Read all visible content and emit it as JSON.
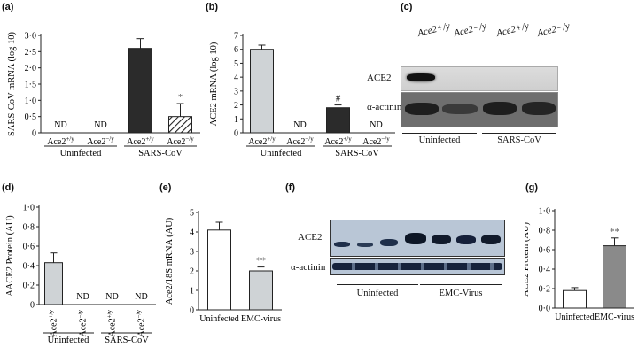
{
  "panels": {
    "a": {
      "label": "(a)",
      "ylabel": "SARS-CoV mRNA (log 10)"
    },
    "b": {
      "label": "(b)",
      "ylabel": "ACE2 mRNA (log 10)"
    },
    "c": {
      "label": "(c)"
    },
    "d": {
      "label": "(d)",
      "ylabel": "AACE2 Protein (AU)"
    },
    "e": {
      "label": "(e)",
      "ylabel": "Ace2/18S mRNA (AU)"
    },
    "f": {
      "label": "(f)"
    },
    "g": {
      "label": "(g)",
      "ylabel": "ACE2 Protein (AU)"
    }
  },
  "blot_c": {
    "lanes": [
      "Ace2+/y",
      "Ace2−/y",
      "Ace2+/y",
      "Ace2−/y"
    ],
    "rows": [
      "ACE2",
      "α-actinin"
    ],
    "groups": [
      "Uninfected",
      "SARS-CoV"
    ]
  },
  "blot_f": {
    "rows": [
      "ACE2",
      "α-actinin"
    ],
    "groups": [
      "Uninfected",
      "EMC-Virus"
    ]
  },
  "chart_data": [
    {
      "id": "a",
      "type": "bar",
      "categories": [
        "Ace2+/y",
        "Ace2−/y",
        "Ace2+/y",
        "Ace2−/y"
      ],
      "groups": [
        "Uninfected",
        "SARS-CoV"
      ],
      "values": [
        null,
        null,
        2.6,
        0.5
      ],
      "errors": [
        null,
        null,
        0.3,
        0.4
      ],
      "labels": [
        "ND",
        "ND",
        "",
        "*"
      ],
      "fills": [
        "#ffffff",
        "#ffffff",
        "#2b2b2b",
        "hatch"
      ],
      "ylim": [
        0,
        3
      ],
      "yticks": [
        "0",
        "0·5",
        "1·0",
        "1·5",
        "2·0",
        "2·5",
        "3·0"
      ],
      "ylabel": "SARS-CoV mRNA (log 10)"
    },
    {
      "id": "b",
      "type": "bar",
      "categories": [
        "Ace2+/y",
        "Ace2−/y",
        "Ace2+/y",
        "Ace2−/y"
      ],
      "groups": [
        "Uninfected",
        "SARS-CoV"
      ],
      "values": [
        6.0,
        null,
        1.8,
        null
      ],
      "errors": [
        0.3,
        null,
        0.2,
        null
      ],
      "labels": [
        "",
        "ND",
        "#",
        "ND"
      ],
      "fills": [
        "#cfd3d6",
        "#ffffff",
        "#2b2b2b",
        "#ffffff"
      ],
      "ylim": [
        0,
        7
      ],
      "yticks": [
        "0",
        "1",
        "2",
        "3",
        "4",
        "5",
        "6",
        "7"
      ],
      "ylabel": "ACE2 mRNA (log 10)"
    },
    {
      "id": "d",
      "type": "bar",
      "categories": [
        "Ace2+/y",
        "Ace2−/y",
        "Ace2+/y",
        "Ace2−/y"
      ],
      "groups": [
        "Uninfected",
        "SARS-CoV"
      ],
      "values": [
        0.43,
        null,
        null,
        null
      ],
      "errors": [
        0.1,
        null,
        null,
        null
      ],
      "labels": [
        "",
        "ND",
        "ND",
        "ND"
      ],
      "fills": [
        "#cfd3d6",
        "#ffffff",
        "#ffffff",
        "#ffffff"
      ],
      "ylim": [
        0,
        1
      ],
      "yticks": [
        "0",
        "0·2",
        "0·4",
        "0·6",
        "0·8",
        "1·0"
      ],
      "ylabel": "AACE2 Protein (AU)"
    },
    {
      "id": "e",
      "type": "bar",
      "categories": [
        "Uninfected",
        "EMC-virus"
      ],
      "values": [
        4.1,
        2.0
      ],
      "errors": [
        0.4,
        0.2
      ],
      "labels": [
        "",
        "**"
      ],
      "fills": [
        "#ffffff",
        "#cfd3d6"
      ],
      "ylim": [
        0,
        5
      ],
      "yticks": [
        "0",
        "1",
        "2",
        "3",
        "4",
        "5"
      ],
      "ylabel": "Ace2/18S mRNA (AU)"
    },
    {
      "id": "g",
      "type": "bar",
      "categories": [
        "Uninfected",
        "EMC-virus"
      ],
      "values": [
        0.18,
        0.64
      ],
      "errors": [
        0.03,
        0.08
      ],
      "labels": [
        "",
        "**"
      ],
      "fills": [
        "#ffffff",
        "#8a8a8a"
      ],
      "ylim": [
        0,
        1
      ],
      "yticks": [
        "0·0",
        "0·2",
        "0·4",
        "0·6",
        "0·8",
        "1·0"
      ],
      "ylabel": "ACE2 Protein (AU)"
    }
  ]
}
